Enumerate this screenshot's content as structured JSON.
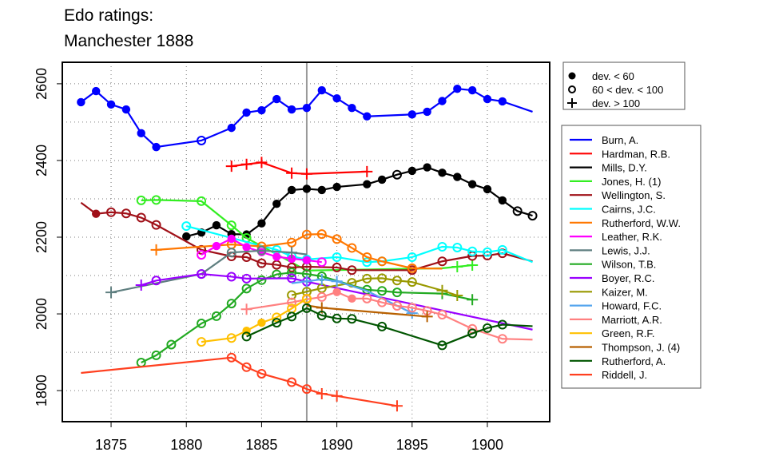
{
  "chart_data": {
    "type": "line",
    "title": [
      "Edo ratings:",
      "Manchester 1888"
    ],
    "xlabel": "",
    "ylabel": "",
    "xlim": [
      1871.76,
      1904.14
    ],
    "ylim": [
      1719,
      2656
    ],
    "xticks": [
      1875,
      1880,
      1885,
      1890,
      1895,
      1900
    ],
    "yticks": [
      1800,
      2000,
      2200,
      2400,
      2600
    ],
    "ygrid": [
      1800,
      1900,
      2000,
      2100,
      2200,
      2300,
      2400,
      2500,
      2600
    ],
    "grid": true,
    "reference_line_x": 1888,
    "marker_legend": {
      "placement": "top-right outside",
      "items": [
        {
          "marker": "filled",
          "label": "dev. < 60"
        },
        {
          "marker": "open",
          "label": "60 < dev. < 100"
        },
        {
          "marker": "plus",
          "label": "dev. > 100"
        }
      ]
    },
    "legend_placement": "right outside",
    "series": [
      {
        "name": "Burn, A.",
        "color": "#0000ff",
        "points": [
          [
            1873,
            2552,
            "f"
          ],
          [
            1874,
            2581,
            "f"
          ],
          [
            1875,
            2546,
            "f"
          ],
          [
            1876,
            2533,
            "f"
          ],
          [
            1877,
            2471,
            "f"
          ],
          [
            1878,
            2435,
            "f"
          ],
          [
            1881,
            2452,
            "o"
          ],
          [
            1883,
            2485,
            "f"
          ],
          [
            1884,
            2525,
            "f"
          ],
          [
            1885,
            2531,
            "f"
          ],
          [
            1886,
            2560,
            "f"
          ],
          [
            1887,
            2533,
            "f"
          ],
          [
            1888,
            2537,
            "f"
          ],
          [
            1889,
            2583,
            "f"
          ],
          [
            1890,
            2562,
            "f"
          ],
          [
            1891,
            2537,
            "f"
          ],
          [
            1892,
            2515,
            "f"
          ],
          [
            1895,
            2520,
            "f"
          ],
          [
            1896,
            2527,
            "f"
          ],
          [
            1897,
            2555,
            "f"
          ],
          [
            1898,
            2587,
            "f"
          ],
          [
            1899,
            2583,
            "f"
          ],
          [
            1900,
            2560,
            "f"
          ],
          [
            1901,
            2554,
            "f"
          ],
          [
            1903,
            2527,
            ""
          ]
        ]
      },
      {
        "name": "Hardman, R.B.",
        "color": "#ff0000",
        "points": [
          [
            1883,
            2385,
            "p"
          ],
          [
            1884,
            2390,
            "p"
          ],
          [
            1885,
            2395,
            "p"
          ],
          [
            1887,
            2367,
            "p"
          ],
          [
            1888,
            2365,
            "p"
          ],
          [
            1892,
            2371,
            "p"
          ]
        ]
      },
      {
        "name": "Mills, D.Y.",
        "color": "#000000",
        "points": [
          [
            1880,
            2202,
            "f"
          ],
          [
            1881,
            2212,
            "f"
          ],
          [
            1882,
            2231,
            "f"
          ],
          [
            1883,
            2208,
            "f"
          ],
          [
            1884,
            2207,
            "f"
          ],
          [
            1885,
            2236,
            "f"
          ],
          [
            1886,
            2287,
            "f"
          ],
          [
            1887,
            2323,
            "f"
          ],
          [
            1888,
            2326,
            "f"
          ],
          [
            1889,
            2323,
            "f"
          ],
          [
            1890,
            2331,
            "f"
          ],
          [
            1892,
            2338,
            "f"
          ],
          [
            1893,
            2350,
            "f"
          ],
          [
            1894,
            2363,
            "o"
          ],
          [
            1895,
            2373,
            "f"
          ],
          [
            1896,
            2382,
            "f"
          ],
          [
            1897,
            2368,
            "f"
          ],
          [
            1898,
            2357,
            "f"
          ],
          [
            1899,
            2338,
            "f"
          ],
          [
            1900,
            2325,
            "f"
          ],
          [
            1901,
            2296,
            "f"
          ],
          [
            1902,
            2268,
            "o"
          ],
          [
            1903,
            2256,
            "o"
          ]
        ]
      },
      {
        "name": "Jones, H. (1)",
        "color": "#33ee22",
        "points": [
          [
            1877,
            2296,
            "o"
          ],
          [
            1878,
            2297,
            "o"
          ],
          [
            1881,
            2294,
            "o"
          ],
          [
            1883,
            2231,
            "o"
          ],
          [
            1884,
            2198,
            "o"
          ],
          [
            1888,
            2113,
            ""
          ],
          [
            1897,
            2119,
            ""
          ],
          [
            1898,
            2123,
            "p"
          ],
          [
            1899,
            2127,
            "p"
          ]
        ]
      },
      {
        "name": "Wellington, S.",
        "color": "#a01018",
        "points": [
          [
            1873,
            2290,
            ""
          ],
          [
            1874,
            2261,
            "f"
          ],
          [
            1875,
            2265,
            "o"
          ],
          [
            1876,
            2262,
            "o"
          ],
          [
            1877,
            2251,
            "o"
          ],
          [
            1878,
            2232,
            "o"
          ],
          [
            1881,
            2167,
            "o"
          ],
          [
            1883,
            2150,
            "o"
          ],
          [
            1884,
            2148,
            "o"
          ],
          [
            1885,
            2132,
            "o"
          ],
          [
            1886,
            2128,
            "o"
          ],
          [
            1887,
            2121,
            "o"
          ],
          [
            1888,
            2123,
            "o"
          ],
          [
            1890,
            2121,
            "o"
          ],
          [
            1891,
            2114,
            "o"
          ],
          [
            1895,
            2114,
            "o"
          ],
          [
            1897,
            2137,
            "o"
          ],
          [
            1899,
            2151,
            "o"
          ],
          [
            1900,
            2152,
            "o"
          ],
          [
            1901,
            2158,
            "o"
          ],
          [
            1903,
            2137,
            ""
          ]
        ]
      },
      {
        "name": "Cairns, J.C.",
        "color": "#00ffff",
        "points": [
          [
            1880,
            2229,
            "o"
          ],
          [
            1886,
            2167,
            "o"
          ],
          [
            1887,
            2150,
            "o"
          ],
          [
            1888,
            2142,
            "o"
          ],
          [
            1890,
            2148,
            "o"
          ],
          [
            1892,
            2135,
            "o"
          ],
          [
            1893,
            2137,
            "o"
          ],
          [
            1895,
            2148,
            "o"
          ],
          [
            1897,
            2175,
            "o"
          ],
          [
            1898,
            2173,
            "o"
          ],
          [
            1899,
            2163,
            "o"
          ],
          [
            1900,
            2161,
            "o"
          ],
          [
            1901,
            2167,
            "o"
          ],
          [
            1903,
            2135,
            ""
          ]
        ]
      },
      {
        "name": "Rutherford, W.W.",
        "color": "#ff7700",
        "points": [
          [
            1878,
            2167,
            "p"
          ],
          [
            1883,
            2181,
            "o"
          ],
          [
            1885,
            2176,
            "o"
          ],
          [
            1887,
            2186,
            "o"
          ],
          [
            1888,
            2207,
            "o"
          ],
          [
            1889,
            2208,
            "o"
          ],
          [
            1890,
            2195,
            "o"
          ],
          [
            1891,
            2172,
            "o"
          ],
          [
            1892,
            2148,
            "o"
          ],
          [
            1893,
            2137,
            "o"
          ],
          [
            1895,
            2119,
            "o"
          ],
          [
            1897,
            2118,
            ""
          ]
        ]
      },
      {
        "name": "Leather, R.K.",
        "color": "#ff00ff",
        "points": [
          [
            1881,
            2154,
            "o"
          ],
          [
            1882,
            2177,
            "f"
          ],
          [
            1883,
            2196,
            "f"
          ],
          [
            1884,
            2174,
            "f"
          ],
          [
            1885,
            2161,
            "f"
          ],
          [
            1886,
            2149,
            "f"
          ],
          [
            1887,
            2144,
            "f"
          ],
          [
            1888,
            2140,
            "f"
          ],
          [
            1889,
            2135,
            "o"
          ]
        ]
      },
      {
        "name": "Lewis, J.J.",
        "color": "#5f7f80",
        "points": [
          [
            1875,
            2056,
            "p"
          ],
          [
            1881,
            2104,
            "o"
          ],
          [
            1883,
            2160,
            "o"
          ],
          [
            1885,
            2165,
            "o"
          ],
          [
            1887,
            2160,
            "p"
          ],
          [
            1888,
            2155,
            ""
          ]
        ]
      },
      {
        "name": "Wilson, T.B.",
        "color": "#22aa22",
        "points": [
          [
            1877,
            1873,
            "o"
          ],
          [
            1878,
            1892,
            "o"
          ],
          [
            1879,
            1920,
            "o"
          ],
          [
            1881,
            1975,
            "o"
          ],
          [
            1882,
            1994,
            "o"
          ],
          [
            1883,
            2027,
            "o"
          ],
          [
            1884,
            2066,
            "o"
          ],
          [
            1885,
            2088,
            "o"
          ],
          [
            1886,
            2103,
            "o"
          ],
          [
            1887,
            2108,
            "o"
          ],
          [
            1888,
            2104,
            "o"
          ],
          [
            1889,
            2098,
            "o"
          ],
          [
            1892,
            2063,
            "o"
          ],
          [
            1893,
            2060,
            "o"
          ],
          [
            1894,
            2056,
            "o"
          ],
          [
            1897,
            2053,
            "p"
          ],
          [
            1899,
            2037,
            "p"
          ]
        ]
      },
      {
        "name": "Boyer, R.C.",
        "color": "#9900ff",
        "points": [
          [
            1877,
            2075,
            "p"
          ],
          [
            1878,
            2087,
            "o"
          ],
          [
            1881,
            2104,
            "o"
          ],
          [
            1883,
            2097,
            "o"
          ],
          [
            1884,
            2092,
            "o"
          ],
          [
            1887,
            2093,
            "o"
          ],
          [
            1888,
            2084,
            "o"
          ],
          [
            1903,
            1959,
            ""
          ]
        ]
      },
      {
        "name": "Kaizer, M.",
        "color": "#999900",
        "points": [
          [
            1887,
            2049,
            "o"
          ],
          [
            1888,
            2058,
            "o"
          ],
          [
            1889,
            2067,
            "o"
          ],
          [
            1891,
            2081,
            "o"
          ],
          [
            1892,
            2092,
            "o"
          ],
          [
            1893,
            2093,
            "o"
          ],
          [
            1894,
            2087,
            "o"
          ],
          [
            1895,
            2083,
            "o"
          ],
          [
            1897,
            2061,
            "p"
          ],
          [
            1898,
            2048,
            "p"
          ]
        ]
      },
      {
        "name": "Howard, F.C.",
        "color": "#55a5ee",
        "points": [
          [
            1887,
            2080,
            ""
          ],
          [
            1888,
            2085,
            "p"
          ],
          [
            1889,
            2090,
            "p"
          ],
          [
            1890,
            2085,
            "p"
          ],
          [
            1892,
            2060,
            ""
          ],
          [
            1895,
            2002,
            "p"
          ]
        ]
      },
      {
        "name": "Marriott, A.R.",
        "color": "#ff8080",
        "points": [
          [
            1884,
            2012,
            "p"
          ],
          [
            1887,
            2030,
            "o"
          ],
          [
            1888,
            2038,
            "o"
          ],
          [
            1889,
            2044,
            "o"
          ],
          [
            1890,
            2057,
            "f"
          ],
          [
            1891,
            2040,
            "f"
          ],
          [
            1892,
            2040,
            "o"
          ],
          [
            1893,
            2030,
            "o"
          ],
          [
            1894,
            2021,
            "o"
          ],
          [
            1895,
            2016,
            "o"
          ],
          [
            1896,
            2008,
            "o"
          ],
          [
            1897,
            1998,
            "o"
          ],
          [
            1899,
            1961,
            "o"
          ],
          [
            1901,
            1935,
            "o"
          ],
          [
            1903,
            1933,
            ""
          ]
        ]
      },
      {
        "name": "Green, R.F.",
        "color": "#ffc000",
        "points": [
          [
            1881,
            1927,
            "o"
          ],
          [
            1883,
            1937,
            "o"
          ],
          [
            1884,
            1956,
            "f"
          ],
          [
            1885,
            1977,
            "f"
          ],
          [
            1886,
            1991,
            "o"
          ],
          [
            1887,
            2014,
            "o"
          ],
          [
            1888,
            2040,
            "o"
          ]
        ]
      },
      {
        "name": "Thompson, J. (4)",
        "color": "#b86000",
        "points": [
          [
            1888,
            2022,
            ""
          ],
          [
            1889,
            2016,
            "p"
          ],
          [
            1896,
            1993,
            "p"
          ]
        ]
      },
      {
        "name": "Rutherford, A.",
        "color": "#005500",
        "points": [
          [
            1884,
            1941,
            "o"
          ],
          [
            1886,
            1977,
            "o"
          ],
          [
            1887,
            1993,
            "o"
          ],
          [
            1888,
            2015,
            "o"
          ],
          [
            1889,
            1996,
            "o"
          ],
          [
            1890,
            1988,
            "o"
          ],
          [
            1891,
            1987,
            "o"
          ],
          [
            1893,
            1967,
            "o"
          ],
          [
            1897,
            1918,
            "o"
          ],
          [
            1899,
            1949,
            "o"
          ],
          [
            1900,
            1963,
            "o"
          ],
          [
            1901,
            1972,
            "o"
          ],
          [
            1903,
            1968,
            ""
          ]
        ]
      },
      {
        "name": "Riddell, J.",
        "color": "#ff4020",
        "points": [
          [
            1873,
            1846,
            ""
          ],
          [
            1883,
            1886,
            "o"
          ],
          [
            1884,
            1861,
            "o"
          ],
          [
            1885,
            1844,
            "o"
          ],
          [
            1887,
            1822,
            "o"
          ],
          [
            1888,
            1804,
            "o"
          ],
          [
            1889,
            1792,
            "p"
          ],
          [
            1890,
            1786,
            "p"
          ],
          [
            1894,
            1760,
            "p"
          ]
        ]
      }
    ]
  }
}
